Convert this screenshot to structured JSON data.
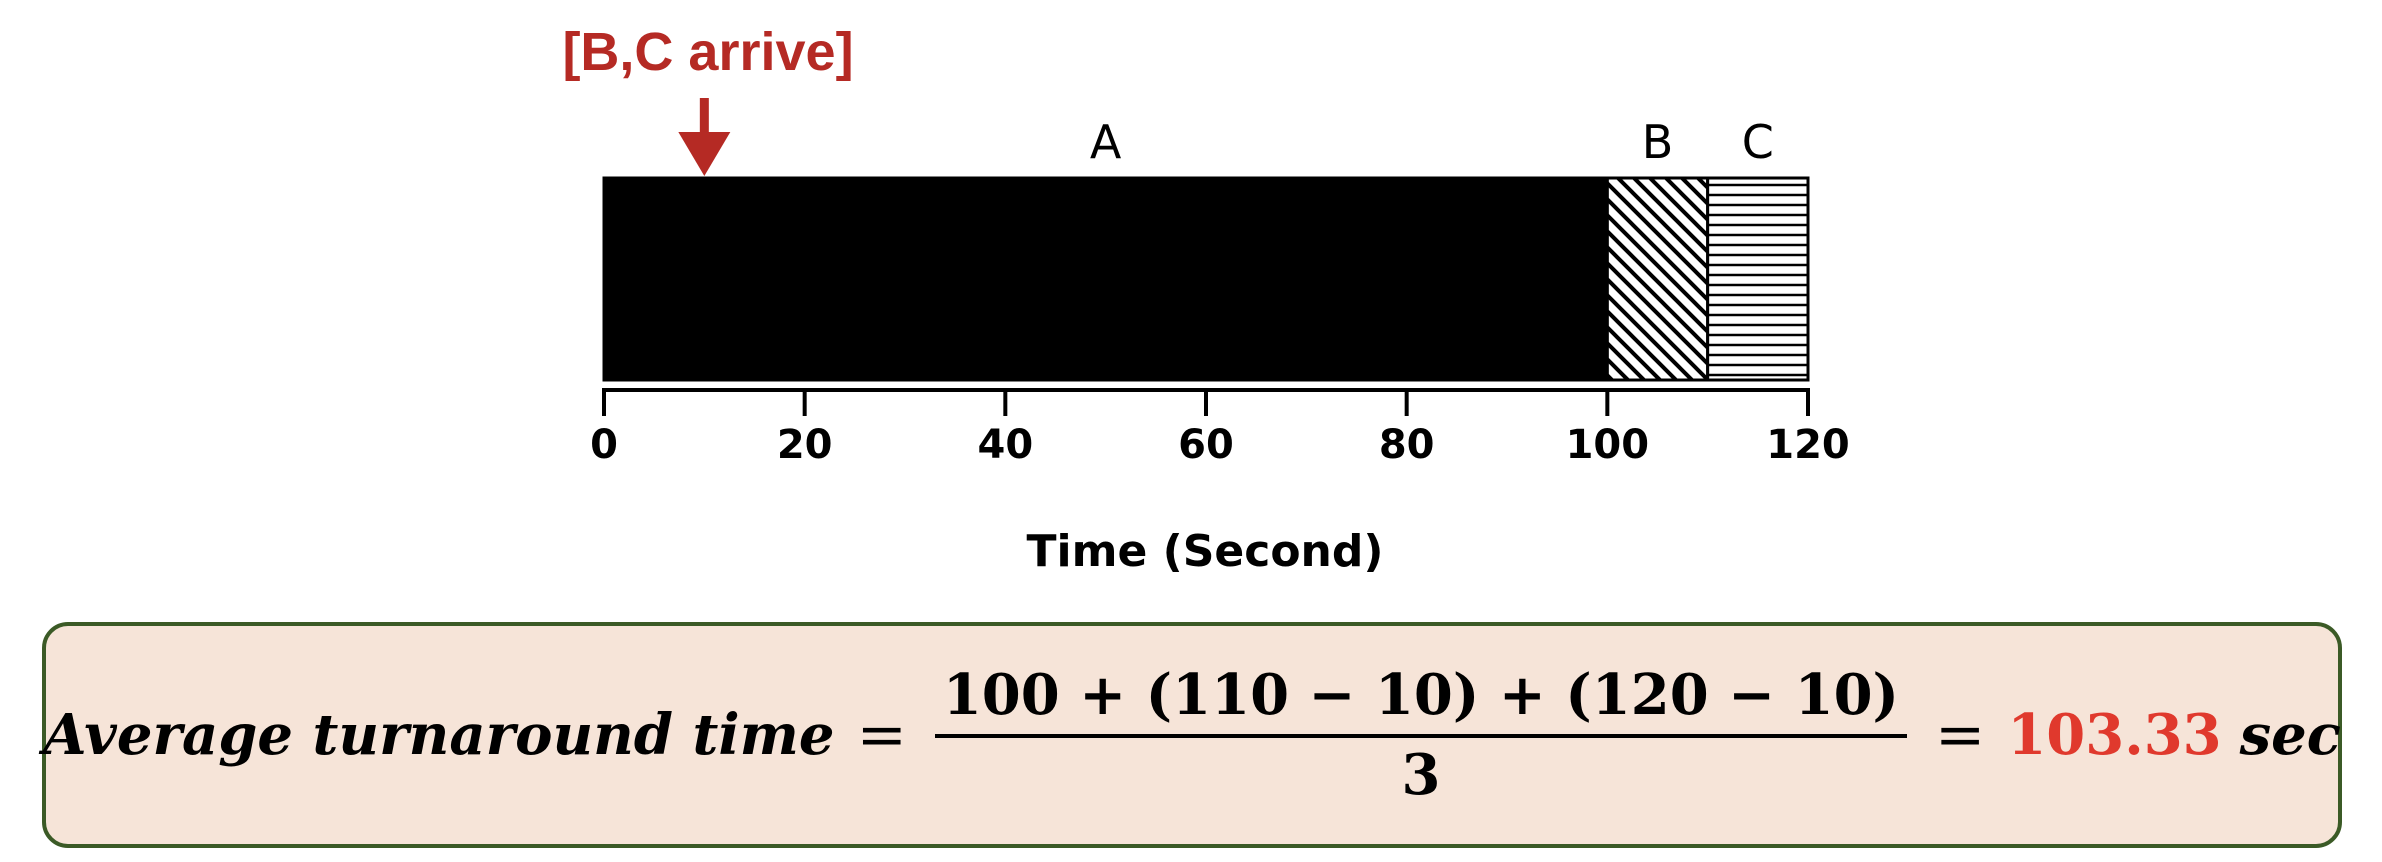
{
  "diagram": {
    "arrival_label": "[B,C arrive]",
    "arrival_time": 10,
    "jobs": [
      {
        "name": "A",
        "start": 0,
        "end": 100,
        "fill": "solid-black"
      },
      {
        "name": "B",
        "start": 100,
        "end": 110,
        "fill": "diagonal-hatch"
      },
      {
        "name": "C",
        "start": 110,
        "end": 120,
        "fill": "horizontal-hatch"
      }
    ],
    "axis": {
      "ticks": [
        "0",
        "20",
        "40",
        "60",
        "80",
        "100",
        "120"
      ],
      "title": "Time (Second)",
      "min": 0,
      "max": 120
    }
  },
  "formula": {
    "lhs": "Average turnaround time",
    "equals": "=",
    "numerator": "100 + (110 − 10) + (120 − 10)",
    "denominator": "3",
    "result": "103.33",
    "unit": "sec"
  },
  "colors": {
    "arrow": "#b52a24",
    "result": "#e0392d",
    "box_fill": "#f6e4d8",
    "box_border": "#3b5a26"
  }
}
